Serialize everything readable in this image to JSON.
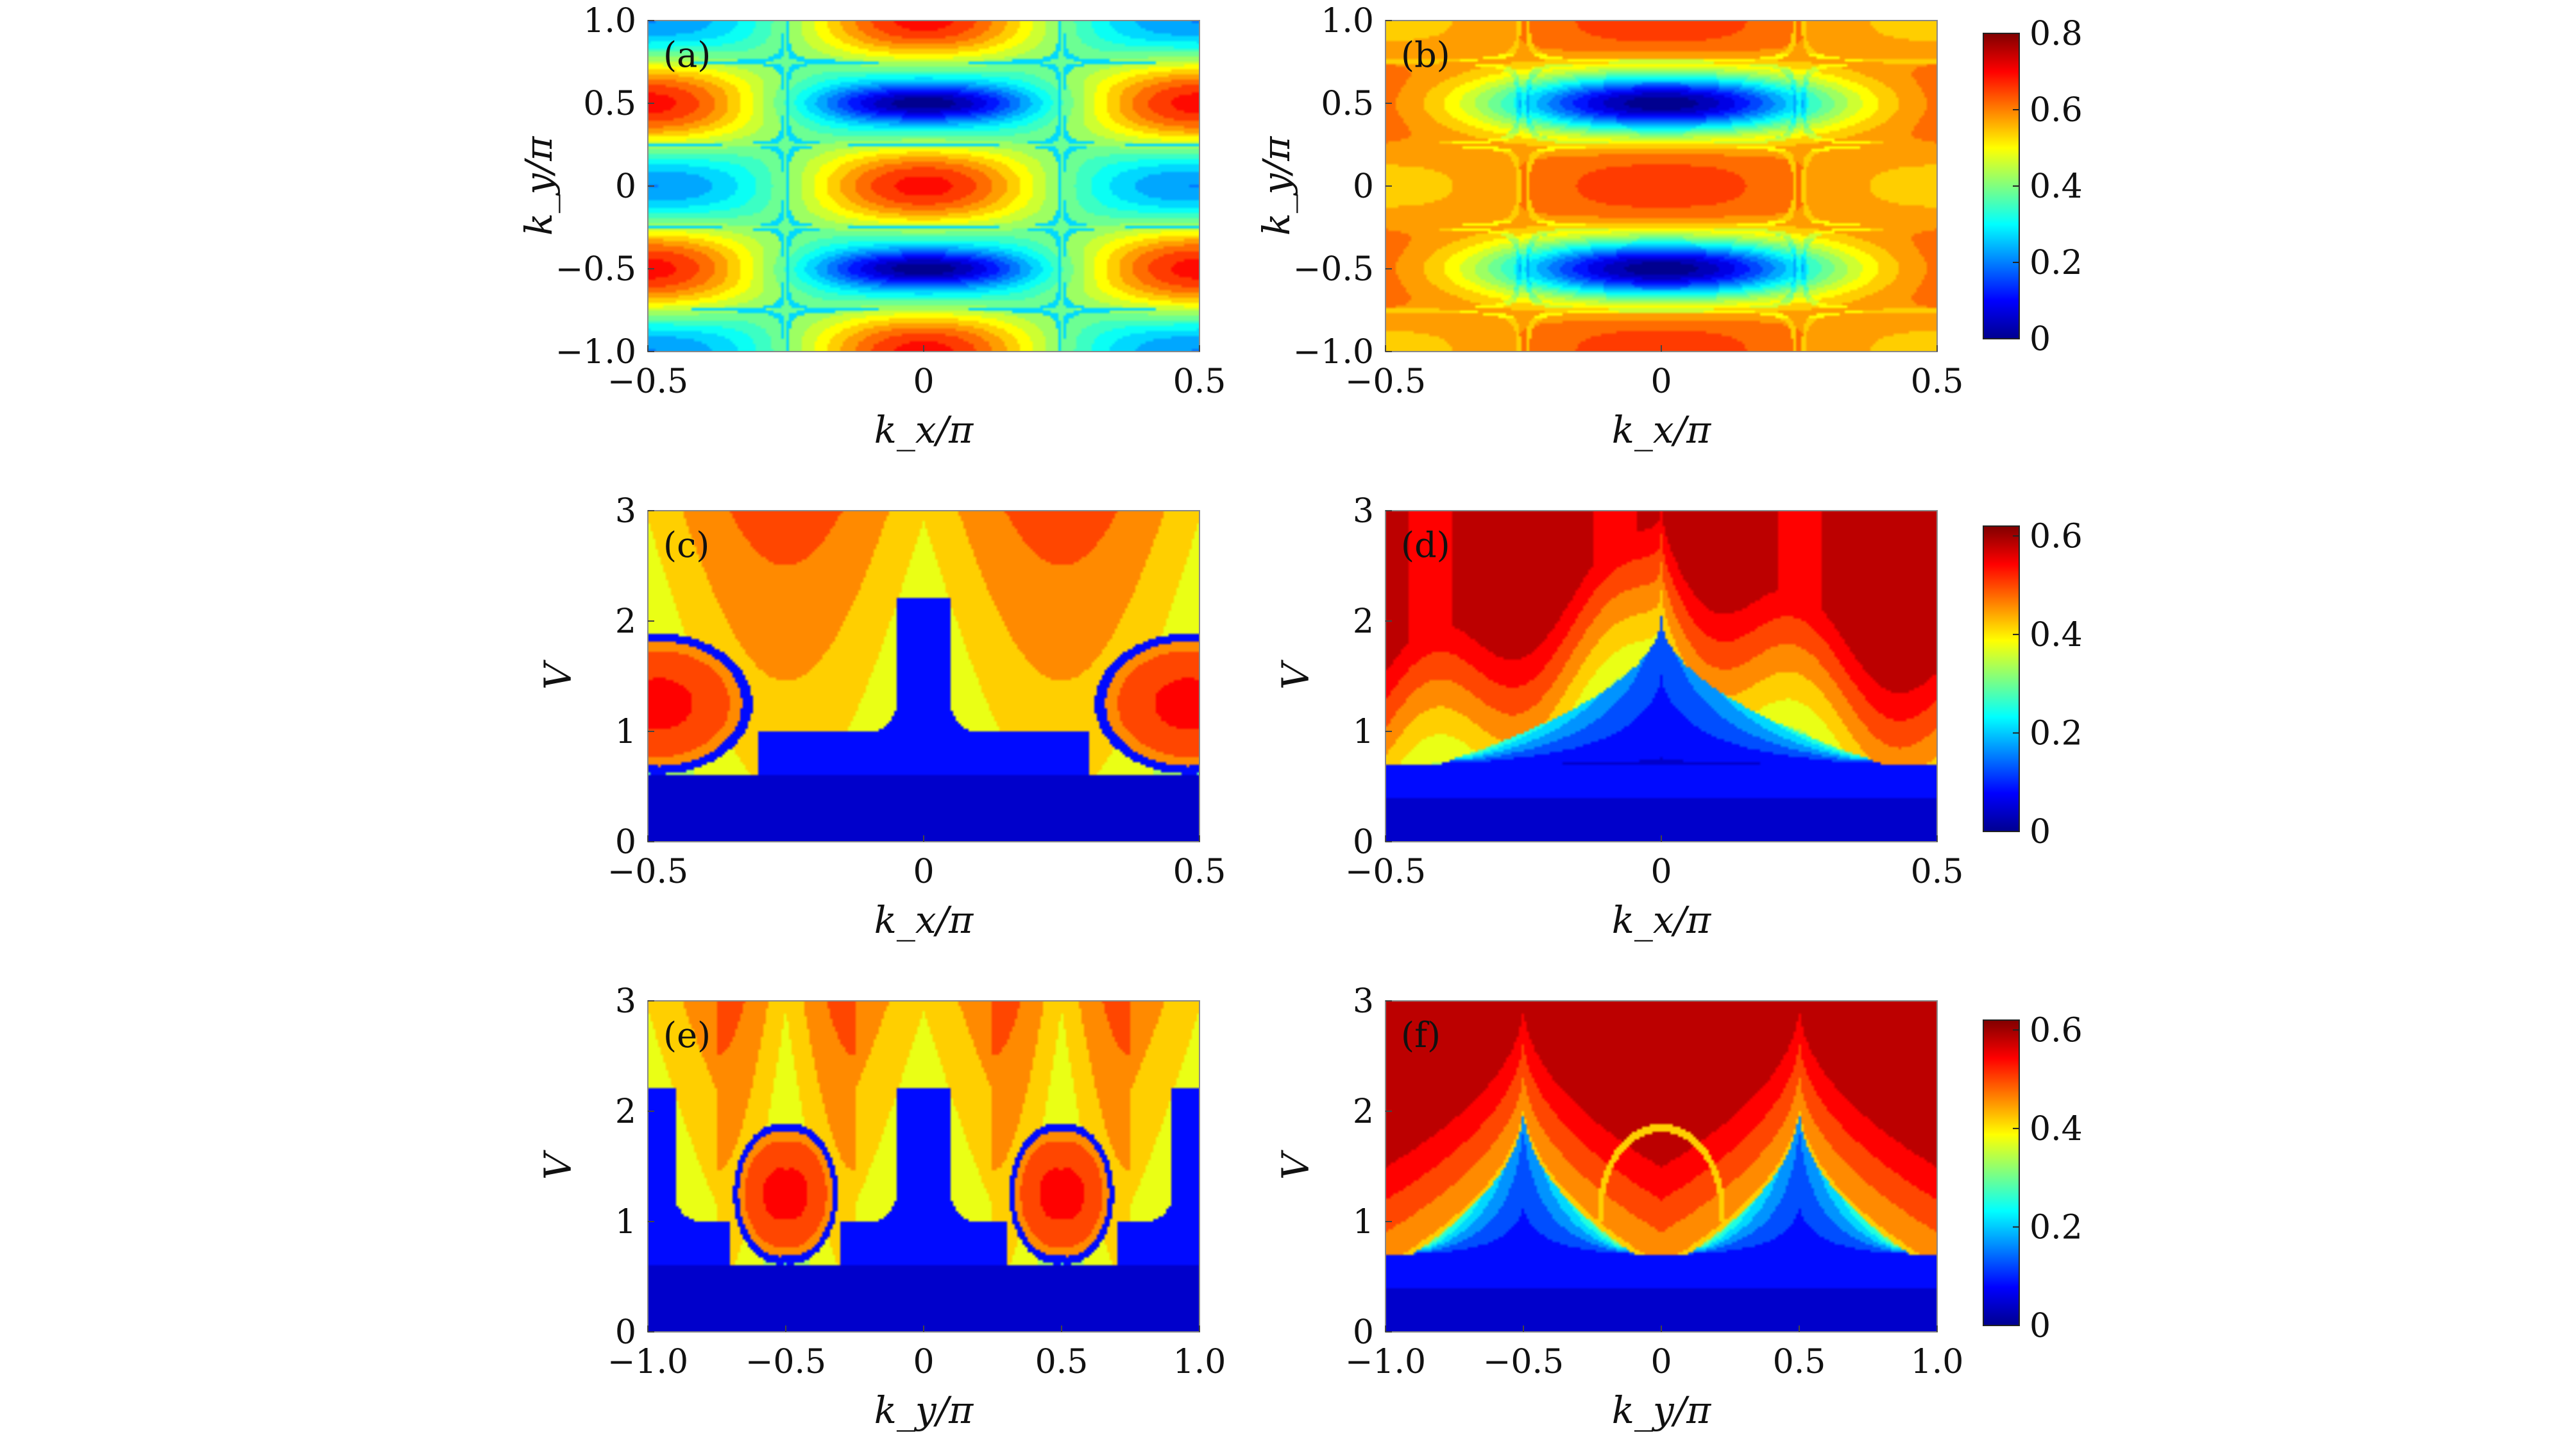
{
  "chart_data": [
    {
      "type": "heatmap",
      "panel_label": "(a)",
      "x_range": [
        -0.5,
        0.5
      ],
      "y_range": [
        -1.0,
        1.0
      ],
      "xticks": [
        "−0.5",
        "0",
        "0.5"
      ],
      "yticks": [
        "−1.0",
        "−0.5",
        "0",
        "0.5",
        "1.0"
      ],
      "xlabel": "k_x/π",
      "ylabel": "k_y/π",
      "values_description": ""
    },
    {
      "type": "heatmap",
      "panel_label": "(b)",
      "x_range": [
        -0.5,
        0.5
      ],
      "y_range": [
        -1.0,
        1.0
      ],
      "xticks": [
        "−0.5",
        "0",
        "0.5"
      ],
      "yticks": [
        "−1.0",
        "−0.5",
        "0",
        "0.5",
        "1.0"
      ],
      "xlabel": "k_x/π",
      "ylabel": "k_y/π",
      "colorbar": {
        "range": [
          0,
          0.8
        ],
        "ticks": [
          "0",
          "0.2",
          "0.4",
          "0.6",
          "0.8"
        ]
      }
    },
    {
      "type": "heatmap",
      "panel_label": "(c)",
      "x_range": [
        -0.5,
        0.5
      ],
      "y_range": [
        0,
        3
      ],
      "xticks": [
        "−0.5",
        "0",
        "0.5"
      ],
      "yticks": [
        "0",
        "1",
        "2",
        "3"
      ],
      "xlabel": "k_x/π",
      "ylabel": "V"
    },
    {
      "type": "heatmap",
      "panel_label": "(d)",
      "x_range": [
        -0.5,
        0.5
      ],
      "y_range": [
        0,
        3
      ],
      "xticks": [
        "−0.5",
        "0",
        "0.5"
      ],
      "yticks": [
        "0",
        "1",
        "2",
        "3"
      ],
      "xlabel": "k_x/π",
      "ylabel": "V",
      "colorbar": {
        "range": [
          0,
          0.62
        ],
        "ticks": [
          "0",
          "0.2",
          "0.4",
          "0.6"
        ]
      }
    },
    {
      "type": "heatmap",
      "panel_label": "(e)",
      "x_range": [
        -1.0,
        1.0
      ],
      "y_range": [
        0,
        3
      ],
      "xticks": [
        "−1.0",
        "−0.5",
        "0",
        "0.5",
        "1.0"
      ],
      "yticks": [
        "0",
        "1",
        "2",
        "3"
      ],
      "xlabel": "k_y/π",
      "ylabel": "V"
    },
    {
      "type": "heatmap",
      "panel_label": "(f)",
      "x_range": [
        -1.0,
        1.0
      ],
      "y_range": [
        0,
        3
      ],
      "xticks": [
        "−1.0",
        "−0.5",
        "0",
        "0.5",
        "1.0"
      ],
      "yticks": [
        "0",
        "1",
        "2",
        "3"
      ],
      "xlabel": "k_y/π",
      "ylabel": "V",
      "colorbar": {
        "range": [
          0,
          0.62
        ],
        "ticks": [
          "0",
          "0.2",
          "0.4",
          "0.6"
        ]
      }
    }
  ],
  "colormap": [
    "#00008f",
    "#0000ff",
    "#00ffff",
    "#ffff00",
    "#ff0000",
    "#800000"
  ]
}
